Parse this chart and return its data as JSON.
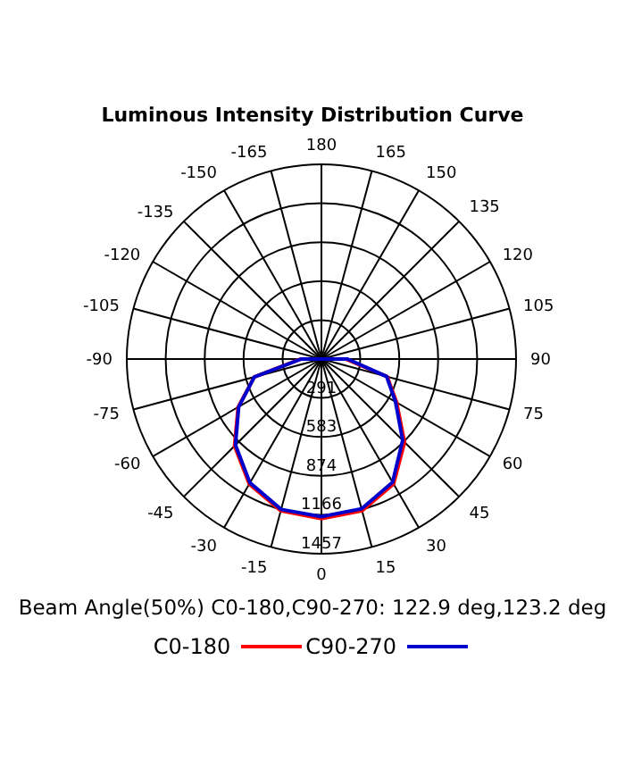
{
  "chart_data": {
    "type": "radar",
    "title": "Luminous Intensity Distribution Curve",
    "categories": [
      "180",
      "165",
      "150",
      "135",
      "120",
      "105",
      "90",
      "75",
      "60",
      "45",
      "30",
      "15",
      "0",
      "-15",
      "-30",
      "-45",
      "-60",
      "-75",
      "-90",
      "-105",
      "-120",
      "-135",
      "-150",
      "-165"
    ],
    "series": [
      {
        "name": "C0-180",
        "color": "#ff0000",
        "values": [
          0,
          0,
          0,
          0,
          0,
          0,
          180,
          510,
          650,
          880,
          1080,
          1175,
          1195,
          1175,
          1080,
          920,
          720,
          520,
          155,
          0,
          0,
          0,
          0,
          0
        ]
      },
      {
        "name": "C90-270",
        "color": "#0000cc",
        "values": [
          0,
          0,
          0,
          0,
          0,
          0,
          195,
          505,
          640,
          860,
          1065,
          1160,
          1180,
          1165,
          1070,
          910,
          715,
          520,
          150,
          0,
          0,
          0,
          0,
          0
        ]
      }
    ],
    "ylim": [
      0,
      1457
    ],
    "yticks": [
      291,
      583,
      874,
      1166,
      1457
    ],
    "annotations": [
      "Beam Angle(50%) C0-180,C90-270: 122.9 deg,123.2 deg"
    ],
    "legend": "bottom"
  }
}
